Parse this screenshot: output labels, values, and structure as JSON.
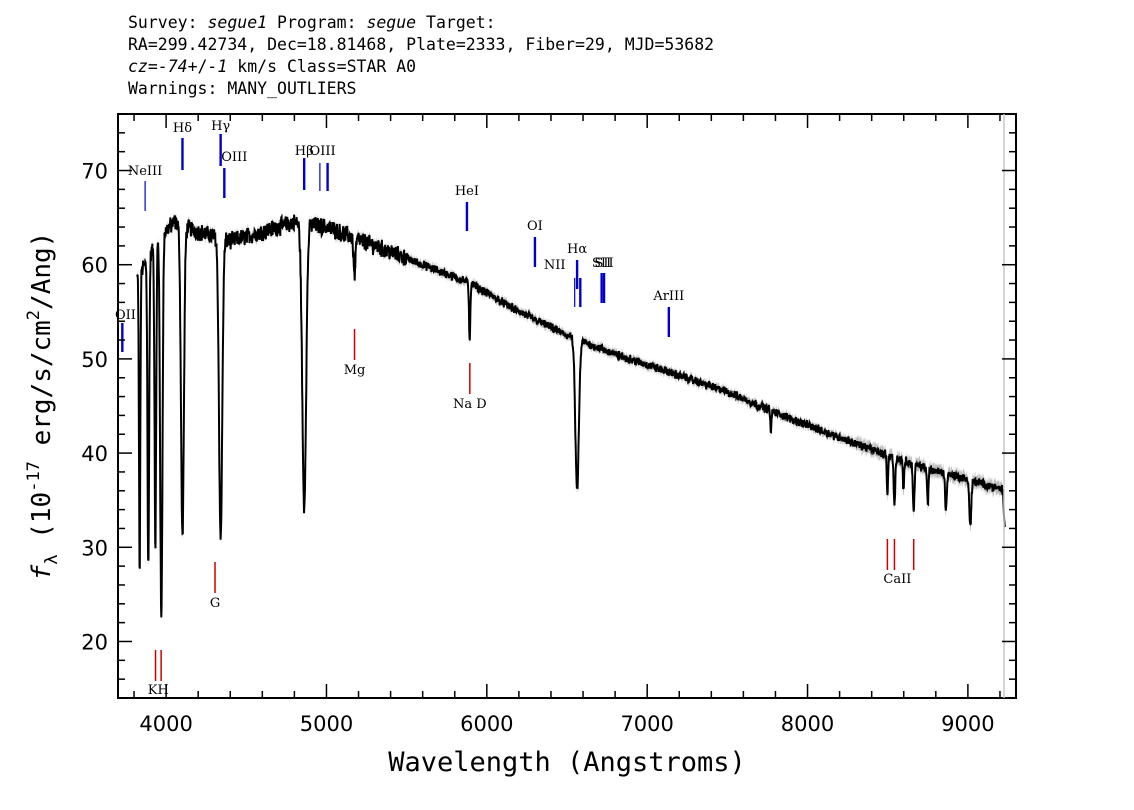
{
  "header": {
    "line1": {
      "a": "Survey: ",
      "survey": "segue1",
      "b": " Program: ",
      "program": "segue",
      "c": " Target:"
    },
    "line2": "RA=299.42734, Dec=18.81468, Plate=2333, Fiber=29, MJD=53682",
    "line3": {
      "cz_label": "cz",
      "a": "=",
      "cz": "-74",
      "b": "+/",
      "err": "-1",
      "c": " km/s Class=STAR A0"
    },
    "line4": "Warnings: MANY_OUTLIERS"
  },
  "chart_data": {
    "type": "line",
    "xlabel": "Wavelength (Angstroms)",
    "ylabel": {
      "f": "f",
      "sub": "λ",
      "pre": " (10",
      "exp": "-17",
      "mid": " erg/s/cm",
      "exp2": "2",
      "post": "/Ang)"
    },
    "xlim": [
      3700,
      9300
    ],
    "ylim": [
      14,
      76
    ],
    "xticks": [
      4000,
      5000,
      6000,
      7000,
      8000,
      9000
    ],
    "yticks": [
      20,
      30,
      40,
      50,
      60,
      70
    ],
    "colors": {
      "flux": "#000000",
      "error": "#bdbdbd",
      "emission": "#0000cc",
      "absorption": "#cc0000"
    },
    "continuum": [
      [
        3800,
        58
      ],
      [
        3900,
        61
      ],
      [
        3960,
        63
      ],
      [
        4050,
        64.5
      ],
      [
        4200,
        63.5
      ],
      [
        4400,
        62.5
      ],
      [
        4600,
        63.5
      ],
      [
        4800,
        64.5
      ],
      [
        5000,
        64
      ],
      [
        5300,
        62
      ],
      [
        5600,
        60
      ],
      [
        5900,
        58
      ],
      [
        6200,
        55
      ],
      [
        6500,
        52.5
      ],
      [
        6800,
        50.5
      ],
      [
        7100,
        48.8
      ],
      [
        7500,
        46.5
      ],
      [
        7800,
        44.3
      ],
      [
        8100,
        42.3
      ],
      [
        8400,
        40.4
      ],
      [
        8700,
        38.6
      ],
      [
        9000,
        37.2
      ],
      [
        9200,
        36.2
      ]
    ],
    "absorption_features": [
      {
        "center": 3835,
        "depth": 32,
        "width": 4
      },
      {
        "center": 3889,
        "depth": 33,
        "width": 5
      },
      {
        "center": 3933,
        "depth": 32,
        "width": 5
      },
      {
        "center": 3970,
        "depth": 41,
        "width": 7
      },
      {
        "center": 4102,
        "depth": 33,
        "width": 9
      },
      {
        "center": 4340,
        "depth": 32,
        "width": 10
      },
      {
        "center": 4861,
        "depth": 30,
        "width": 12
      },
      {
        "center": 5175,
        "depth": 4,
        "width": 6
      },
      {
        "center": 5893,
        "depth": 6,
        "width": 4
      },
      {
        "center": 6563,
        "depth": 16,
        "width": 11
      },
      {
        "center": 7772,
        "depth": 2.5,
        "width": 3
      },
      {
        "center": 8498,
        "depth": 4,
        "width": 4
      },
      {
        "center": 8542,
        "depth": 5,
        "width": 5
      },
      {
        "center": 8598,
        "depth": 3,
        "width": 4
      },
      {
        "center": 8662,
        "depth": 5,
        "width": 5
      },
      {
        "center": 8750,
        "depth": 4,
        "width": 4
      },
      {
        "center": 8863,
        "depth": 4,
        "width": 5
      },
      {
        "center": 9015,
        "depth": 5,
        "width": 6
      },
      {
        "center": 9229,
        "depth": 4,
        "width": 5
      }
    ],
    "emission_lines": [
      {
        "label": "OII",
        "wavelength": 3727
      },
      {
        "label": "NeIII",
        "wavelength": 3869
      },
      {
        "label": "Hδ",
        "wavelength": 4102
      },
      {
        "label": "Hγ",
        "wavelength": 4340
      },
      {
        "label": "OIII",
        "wavelength": 4363
      },
      {
        "label": "Hβ",
        "wavelength": 4861
      },
      {
        "label": "OIII",
        "wavelength": 4959
      },
      {
        "label": "OIII",
        "wavelength": 5007
      },
      {
        "label": "HeI",
        "wavelength": 5876
      },
      {
        "label": "OI",
        "wavelength": 6300
      },
      {
        "label": "NII",
        "wavelength": 6548
      },
      {
        "label": "Hα",
        "wavelength": 6563
      },
      {
        "label": "NII",
        "wavelength": 6583
      },
      {
        "label": "SII",
        "wavelength": 6716
      },
      {
        "label": "SII",
        "wavelength": 6731
      },
      {
        "label": "ArIII",
        "wavelength": 7135
      }
    ],
    "absorption_lines": [
      {
        "label": "K",
        "wavelength": 3934
      },
      {
        "label": "H",
        "wavelength": 3969
      },
      {
        "label": "G",
        "wavelength": 4305
      },
      {
        "label": "Mg",
        "wavelength": 5175
      },
      {
        "label": "Na D",
        "wavelength": 5894
      },
      {
        "label": "CaII",
        "wavelength": 8498
      },
      {
        "label": "CaII",
        "wavelength": 8542
      },
      {
        "label": "CaII",
        "wavelength": 8662
      }
    ]
  }
}
